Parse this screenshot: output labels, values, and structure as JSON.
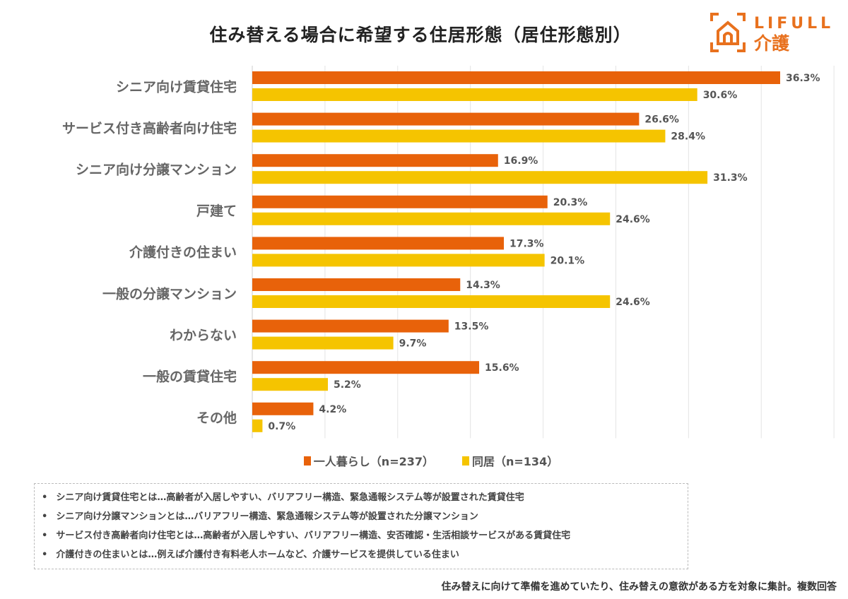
{
  "title": "住み替える場合に希望する住居形態（居住形態別）",
  "logo": {
    "text1": "LIFULL",
    "text2": "介護",
    "color": "#E8711E"
  },
  "chart_data": {
    "type": "bar",
    "orientation": "horizontal",
    "title": "住み替える場合に希望する住居形態（居住形態別）",
    "categories": [
      "シニア向け賃貸住宅",
      "サービス付き高齢者向け住宅",
      "シニア向け分譲マンション",
      "戸建て",
      "介護付きの住まい",
      "一般の分譲マンション",
      "わからない",
      "一般の賃貸住宅",
      "その他"
    ],
    "series": [
      {
        "name": "一人暮らし（n=237）",
        "color": "#E8620A",
        "values": [
          36.3,
          26.6,
          16.9,
          20.3,
          17.3,
          14.3,
          13.5,
          15.6,
          4.2
        ]
      },
      {
        "name": "同居（n=134）",
        "color": "#F5C400",
        "values": [
          30.6,
          28.4,
          31.3,
          24.6,
          20.1,
          24.6,
          9.7,
          5.2,
          0.7
        ]
      }
    ],
    "value_suffix": "%",
    "xlim": [
      0,
      40
    ],
    "grid": true,
    "legend": "bottom"
  },
  "notes": [
    "シニア向け賃貸住宅とは…高齢者が入居しやすい、バリアフリー構造、緊急通報システム等が設置された賃貸住宅",
    "シニア向け分譲マンションとは…バリアフリー構造、緊急通報システム等が設置された分譲マンション",
    "サービス付き高齢者向け住宅とは…高齢者が入居しやすい、バリアフリー構造、安否確認・生活相談サービスがある賃貸住宅",
    "介護付きの住まいとは…例えば介護付き有料老人ホームなど、介護サービスを提供している住まい"
  ],
  "footnote": "住み替えに向けて準備を進めていたり、住み替えの意欲がある方を対象に集計。複数回答"
}
